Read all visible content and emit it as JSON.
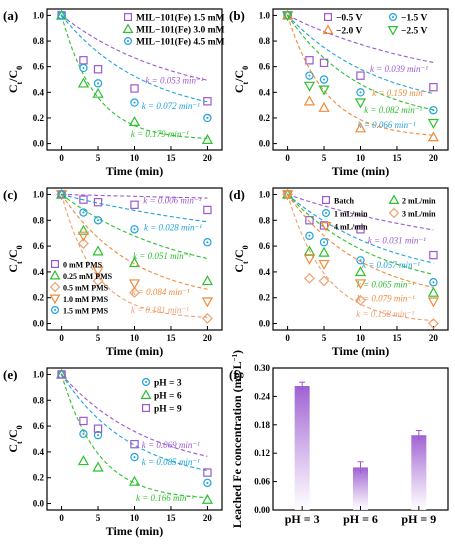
{
  "figure": {
    "panels": [
      {
        "id": "a",
        "label": "(a)",
        "xlabel": "Time (min)",
        "ylabel_main": "C",
        "ylabel_sub1": "t",
        "ylabel_mid": "/C",
        "ylabel_sub2": "0"
      },
      {
        "id": "b",
        "label": "(b)",
        "xlabel": "Time (min)",
        "ylabel_main": "C",
        "ylabel_sub1": "t",
        "ylabel_mid": "/C",
        "ylabel_sub2": "0"
      },
      {
        "id": "c",
        "label": "(c)",
        "xlabel": "Time (min)",
        "ylabel_main": "C",
        "ylabel_sub1": "t",
        "ylabel_mid": "/C",
        "ylabel_sub2": "0"
      },
      {
        "id": "d",
        "label": "(d)",
        "xlabel": "Time (min)",
        "ylabel_main": "C",
        "ylabel_sub1": "t",
        "ylabel_mid": "/C",
        "ylabel_sub2": "0"
      },
      {
        "id": "e",
        "label": "(e)",
        "xlabel": "Time (min)",
        "ylabel_main": "C",
        "ylabel_sub1": "t",
        "ylabel_mid": "/C",
        "ylabel_sub2": "0"
      },
      {
        "id": "f",
        "label": "(f)",
        "xlabel": "",
        "ylabel": "Leached Fe concentration (mg L",
        "ylabel_sup": "−1",
        "ylabel_end": ")"
      }
    ]
  },
  "chart_data": [
    {
      "panel": "a",
      "type": "scatter",
      "xlim": [
        -2,
        22
      ],
      "ylim": [
        -0.05,
        1.05
      ],
      "xticks": [
        "0",
        "5",
        "10",
        "15",
        "20"
      ],
      "yticks": [
        "0.0",
        "0.2",
        "0.4",
        "0.6",
        "0.8",
        "1.0"
      ],
      "legend_position": "top-right",
      "series": [
        {
          "name": "MIL−101(Fe) 1.5 mM",
          "color": "#9b59d0",
          "marker": "square",
          "x": [
            0,
            3,
            5,
            10,
            20
          ],
          "y": [
            1.0,
            0.65,
            0.58,
            0.43,
            0.33
          ],
          "k": "k = 0.053 min⁻¹"
        },
        {
          "name": "MIL−101(Fe) 3.0 mM",
          "color": "#2ec02e",
          "marker": "triangle",
          "x": [
            0,
            3,
            5,
            10,
            20
          ],
          "y": [
            1.0,
            0.47,
            0.39,
            0.17,
            0.03
          ],
          "k": "k = 0.179 min⁻¹"
        },
        {
          "name": "MIL−101(Fe) 4.5 mM",
          "color": "#1fa2de",
          "marker": "circle",
          "x": [
            0,
            3,
            5,
            10,
            20
          ],
          "y": [
            1.0,
            0.59,
            0.47,
            0.32,
            0.2
          ],
          "k": "k = 0.072 min⁻¹"
        }
      ]
    },
    {
      "panel": "b",
      "type": "scatter",
      "xlim": [
        -2,
        22
      ],
      "ylim": [
        -0.05,
        1.05
      ],
      "xticks": [
        "0",
        "5",
        "10",
        "15",
        "20"
      ],
      "yticks": [
        "0.0",
        "0.2",
        "0.4",
        "0.6",
        "0.8",
        "1.0"
      ],
      "legend_position": "top-right",
      "series": [
        {
          "name": "−0.5 V",
          "color": "#9b59d0",
          "marker": "square",
          "x": [
            0,
            3,
            5,
            10,
            20
          ],
          "y": [
            1.0,
            0.65,
            0.63,
            0.53,
            0.44
          ],
          "k": "k = 0.039 min⁻¹"
        },
        {
          "name": "−1.5 V",
          "color": "#1fa2de",
          "marker": "circle",
          "x": [
            0,
            3,
            5,
            10,
            20
          ],
          "y": [
            1.0,
            0.53,
            0.5,
            0.4,
            0.26
          ],
          "k": "k = 0.066 min⁻¹"
        },
        {
          "name": "−2.0 V",
          "color": "#f08a3a",
          "marker": "triangle",
          "x": [
            0,
            3,
            5,
            10,
            20
          ],
          "y": [
            1.0,
            0.33,
            0.28,
            0.12,
            0.05
          ],
          "k": "k = 0.159 min⁻¹"
        },
        {
          "name": "−2.5 V",
          "color": "#2ec02e",
          "marker": "triangle-down",
          "x": [
            0,
            3,
            5,
            10,
            20
          ],
          "y": [
            1.0,
            0.45,
            0.42,
            0.32,
            0.16
          ],
          "k": "k = 0.082 min⁻¹"
        }
      ]
    },
    {
      "panel": "c",
      "type": "scatter",
      "xlim": [
        -2,
        22
      ],
      "ylim": [
        -0.05,
        1.05
      ],
      "xticks": [
        "0",
        "5",
        "10",
        "15",
        "20"
      ],
      "yticks": [
        "0.0",
        "0.2",
        "0.4",
        "0.6",
        "0.8",
        "1.0"
      ],
      "legend_position": "bottom-left",
      "series": [
        {
          "name": "0 mM PMS",
          "color": "#9b59d0",
          "marker": "square",
          "x": [
            0,
            3,
            5,
            10,
            20
          ],
          "y": [
            1.0,
            0.96,
            0.94,
            0.92,
            0.88
          ],
          "k": "k = 0.006 min⁻¹"
        },
        {
          "name": "0.25 mM PMS",
          "color": "#2ec02e",
          "marker": "triangle",
          "x": [
            0,
            3,
            5,
            10,
            20
          ],
          "y": [
            1.0,
            0.72,
            0.56,
            0.47,
            0.33
          ],
          "k": "k = 0.051 min⁻¹"
        },
        {
          "name": "0.5 mM PMS",
          "color": "#f0a070",
          "marker": "diamond",
          "x": [
            0,
            3,
            5,
            10,
            20
          ],
          "y": [
            1.0,
            0.62,
            0.33,
            0.24,
            0.04
          ],
          "k": "k = 0.181 min⁻¹"
        },
        {
          "name": "1.0 mM PMS",
          "color": "#f08a3a",
          "marker": "triangle-down",
          "x": [
            0,
            3,
            5,
            10,
            20
          ],
          "y": [
            1.0,
            0.68,
            0.41,
            0.31,
            0.17
          ],
          "k": "k = 0.084 min⁻¹"
        },
        {
          "name": "1.5 mM PMS",
          "color": "#1fa2de",
          "marker": "circle",
          "x": [
            0,
            3,
            5,
            10,
            20
          ],
          "y": [
            1.0,
            0.86,
            0.8,
            0.73,
            0.63
          ],
          "k": "k = 0.028 min⁻¹"
        }
      ]
    },
    {
      "panel": "d",
      "type": "scatter",
      "xlim": [
        -2,
        22
      ],
      "ylim": [
        -0.05,
        1.05
      ],
      "xticks": [
        "0",
        "5",
        "10",
        "15",
        "20"
      ],
      "yticks": [
        "0.0",
        "0.2",
        "0.4",
        "0.6",
        "0.8",
        "1.0"
      ],
      "legend_position": "top-right",
      "series": [
        {
          "name": "Batch",
          "color": "#9b59d0",
          "marker": "square",
          "x": [
            0,
            3,
            5,
            10,
            20
          ],
          "y": [
            1.0,
            0.8,
            0.76,
            0.73,
            0.53
          ],
          "k": "k = 0.031 min⁻¹"
        },
        {
          "name": "1 mL/min",
          "color": "#1fa2de",
          "marker": "circle",
          "x": [
            0,
            3,
            5,
            10,
            20
          ],
          "y": [
            1.0,
            0.68,
            0.63,
            0.49,
            0.32
          ],
          "k": "k = 0.057 min⁻¹"
        },
        {
          "name": "2 mL/min",
          "color": "#2ec02e",
          "marker": "triangle",
          "x": [
            0,
            3,
            5,
            10,
            20
          ],
          "y": [
            1.0,
            0.56,
            0.55,
            0.4,
            0.24
          ],
          "k": "k = 0.065 min⁻¹"
        },
        {
          "name": "3 mL/min",
          "color": "#f0a070",
          "marker": "diamond",
          "x": [
            0,
            3,
            5,
            10,
            20
          ],
          "y": [
            1.0,
            0.35,
            0.33,
            0.18,
            0.0
          ],
          "k": "k = 0.158 min⁻¹"
        },
        {
          "name": "4 mL/min",
          "color": "#f08a3a",
          "marker": "triangle-down",
          "x": [
            0,
            3,
            5,
            10,
            20
          ],
          "y": [
            1.0,
            0.5,
            0.46,
            0.31,
            0.17
          ],
          "k": "k = 0.079 min⁻¹"
        }
      ]
    },
    {
      "panel": "e",
      "type": "scatter",
      "xlim": [
        -2,
        22
      ],
      "ylim": [
        -0.05,
        1.05
      ],
      "xticks": [
        "0",
        "5",
        "10",
        "15",
        "20"
      ],
      "yticks": [
        "0.0",
        "0.2",
        "0.4",
        "0.6",
        "0.8",
        "1.0"
      ],
      "legend_position": "top-right",
      "series": [
        {
          "name": "pH = 3",
          "color": "#1fa2de",
          "marker": "circle",
          "x": [
            0,
            3,
            5,
            10,
            20
          ],
          "y": [
            1.0,
            0.54,
            0.53,
            0.36,
            0.16
          ],
          "k": "k = 0.085 min⁻¹"
        },
        {
          "name": "pH = 6",
          "color": "#2ec02e",
          "marker": "triangle",
          "x": [
            0,
            3,
            5,
            10,
            20
          ],
          "y": [
            1.0,
            0.33,
            0.28,
            0.17,
            0.03
          ],
          "k": "k = 0.166 min⁻¹"
        },
        {
          "name": "pH = 9",
          "color": "#9b59d0",
          "marker": "square",
          "x": [
            0,
            3,
            5,
            10,
            20
          ],
          "y": [
            1.0,
            0.64,
            0.58,
            0.46,
            0.24
          ],
          "k": "k = 0.069 min⁻¹"
        }
      ]
    },
    {
      "panel": "f",
      "type": "bar",
      "categories": [
        "pH = 3",
        "pH = 6",
        "pH = 9"
      ],
      "values": [
        0.262,
        0.09,
        0.158
      ],
      "errors": [
        0.008,
        0.012,
        0.01
      ],
      "ylim": [
        0,
        0.3
      ],
      "yticks": [
        "0.00",
        "0.06",
        "0.12",
        "0.18",
        "0.24",
        "0.30"
      ],
      "color": "#9b59d0"
    }
  ]
}
